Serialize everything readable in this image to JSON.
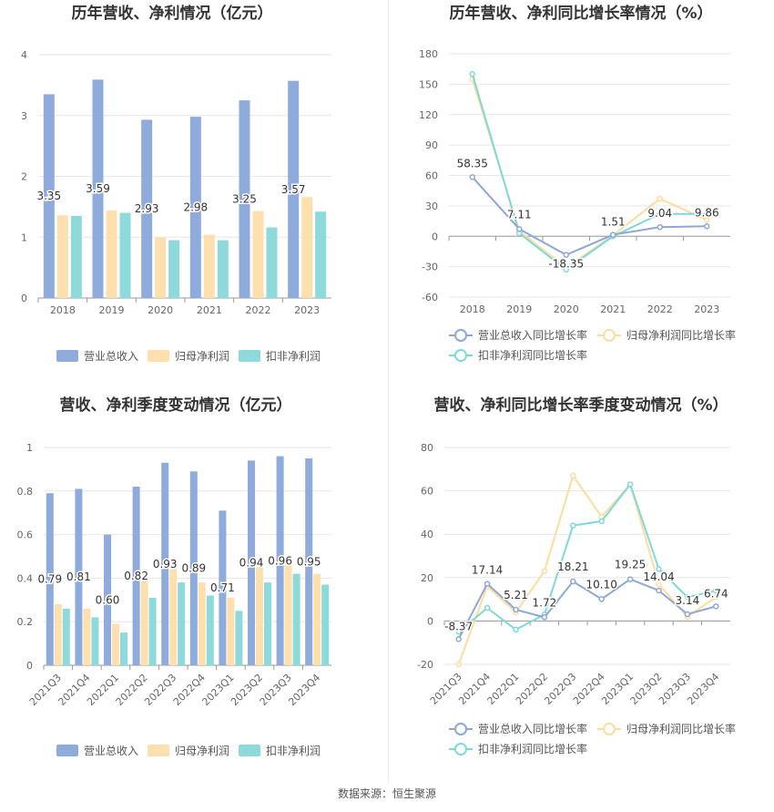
{
  "footer": "数据来源：恒生聚源",
  "legend_labels": {
    "bars": [
      "营业总收入",
      "归母净利润",
      "扣非净利润"
    ],
    "lines": [
      "营业总收入同比增长率",
      "归母净利润同比增长率",
      "扣非净利润同比增长率"
    ]
  },
  "colors": {
    "revenue": "#8eabdc",
    "net_profit": "#fde0ae",
    "deducted_profit": "#8ed9da",
    "revenue_line": "#8ea7d6",
    "net_profit_line": "#fddc9e",
    "deducted_line": "#7fd8da"
  },
  "chart_data": [
    {
      "type": "bar",
      "title": "历年营收、净利情况（亿元）",
      "categories": [
        "2018",
        "2019",
        "2020",
        "2021",
        "2022",
        "2023"
      ],
      "ylim": [
        0,
        4
      ],
      "yticks": [
        0,
        1,
        2,
        3,
        4
      ],
      "series": [
        {
          "name": "营业总收入",
          "values": [
            3.35,
            3.59,
            2.93,
            2.98,
            3.25,
            3.57
          ],
          "labels": [
            "3.35",
            "3.59",
            "2.93",
            "2.98",
            "3.25",
            "3.57"
          ]
        },
        {
          "name": "归母净利润",
          "values": [
            1.36,
            1.44,
            1.0,
            1.04,
            1.43,
            1.66
          ]
        },
        {
          "name": "扣非净利润",
          "values": [
            1.35,
            1.4,
            0.95,
            0.95,
            1.16,
            1.42
          ]
        }
      ],
      "legend": "bottom"
    },
    {
      "type": "line",
      "title": "历年营收、净利同比增长率情况（%）",
      "categories": [
        "2018",
        "2019",
        "2020",
        "2021",
        "2022",
        "2023"
      ],
      "ylim": [
        -60,
        180
      ],
      "yticks": [
        -60,
        -30,
        0,
        30,
        60,
        90,
        120,
        150,
        180
      ],
      "series": [
        {
          "name": "营业总收入同比增长率",
          "values": [
            58.35,
            7.11,
            -18.35,
            1.51,
            9.04,
            9.86
          ],
          "labels": [
            "58.35",
            "7.11",
            "-18.35",
            "1.51",
            "9.04",
            "9.86"
          ]
        },
        {
          "name": "归母净利润同比增长率",
          "values": [
            155,
            5,
            -31,
            1,
            37,
            16
          ]
        },
        {
          "name": "扣非净利润同比增长率",
          "values": [
            160,
            3,
            -33,
            0,
            22,
            22
          ]
        }
      ],
      "legend": "bottom"
    },
    {
      "type": "bar",
      "title": "营收、净利季度变动情况（亿元）",
      "categories": [
        "2021Q3",
        "2021Q4",
        "2022Q1",
        "2022Q2",
        "2022Q3",
        "2022Q4",
        "2023Q1",
        "2023Q2",
        "2023Q3",
        "2023Q4"
      ],
      "ylim": [
        0,
        1
      ],
      "yticks": [
        0,
        0.2,
        0.4,
        0.6,
        0.8,
        1
      ],
      "series": [
        {
          "name": "营业总收入",
          "values": [
            0.79,
            0.81,
            0.6,
            0.82,
            0.93,
            0.89,
            0.71,
            0.94,
            0.96,
            0.95
          ],
          "labels": [
            "0.79",
            "0.81",
            "0.60",
            "0.82",
            "0.93",
            "0.89",
            "0.71",
            "0.94",
            "0.96",
            "0.95"
          ]
        },
        {
          "name": "归母净利润",
          "values": [
            0.28,
            0.26,
            0.19,
            0.39,
            0.44,
            0.38,
            0.31,
            0.45,
            0.46,
            0.42
          ]
        },
        {
          "name": "扣非净利润",
          "values": [
            0.26,
            0.22,
            0.15,
            0.31,
            0.38,
            0.32,
            0.25,
            0.38,
            0.42,
            0.37
          ]
        }
      ],
      "legend": "bottom"
    },
    {
      "type": "line",
      "title": "营收、净利同比增长率季度变动情况（%）",
      "categories": [
        "2021Q3",
        "2021Q4",
        "2022Q1",
        "2022Q2",
        "2022Q3",
        "2022Q4",
        "2023Q1",
        "2023Q2",
        "2023Q3",
        "2023Q4"
      ],
      "ylim": [
        -20,
        80
      ],
      "yticks": [
        -20,
        0,
        20,
        40,
        60,
        80
      ],
      "series": [
        {
          "name": "营业总收入同比增长率",
          "values": [
            -8.37,
            17.14,
            5.21,
            1.72,
            18.21,
            10.1,
            19.25,
            14.04,
            3.14,
            6.74
          ],
          "labels": [
            "-8.37",
            "17.14",
            "5.21",
            "1.72",
            "18.21",
            "10.10",
            "19.25",
            "14.04",
            "3.14",
            "6.74"
          ]
        },
        {
          "name": "归母净利润同比增长率",
          "values": [
            -20,
            16,
            4,
            23,
            67,
            48,
            63,
            17,
            2,
            11
          ]
        },
        {
          "name": "扣非净利润同比增长率",
          "values": [
            -5,
            6,
            -4,
            3,
            44,
            46,
            63,
            24,
            11,
            14
          ]
        }
      ],
      "legend": "bottom"
    }
  ]
}
